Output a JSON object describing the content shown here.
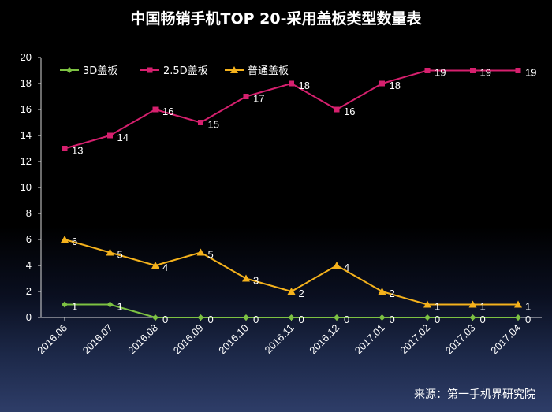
{
  "chart_data": {
    "type": "line",
    "title": "中国畅销手机TOP 20-采用盖板类型数量表",
    "categories": [
      "2016.06",
      "2016.07",
      "2016.08",
      "2016.09",
      "2016.10",
      "2016.11",
      "2016.12",
      "2017.01",
      "2017.02",
      "2017.03",
      "2017.04"
    ],
    "series": [
      {
        "name": "3D盖板",
        "color": "#7dc242",
        "marker": "diamond",
        "values": [
          1,
          1,
          0,
          0,
          0,
          0,
          0,
          0,
          0,
          0,
          0
        ]
      },
      {
        "name": "2.5D盖板",
        "color": "#d6206e",
        "marker": "square",
        "values": [
          13,
          14,
          16,
          15,
          17,
          18,
          16,
          18,
          19,
          19,
          19
        ]
      },
      {
        "name": "普通盖板",
        "color": "#f5b21c",
        "marker": "triangle",
        "values": [
          6,
          5,
          4,
          5,
          3,
          2,
          4,
          2,
          1,
          1,
          1
        ]
      }
    ],
    "ylim": [
      0,
      20
    ],
    "yticks": [
      0,
      2,
      4,
      6,
      8,
      10,
      12,
      14,
      16,
      18,
      20
    ],
    "grid": false,
    "legend_position": "top-left",
    "data_labels": true
  },
  "source": "来源：第一手机界研究院"
}
